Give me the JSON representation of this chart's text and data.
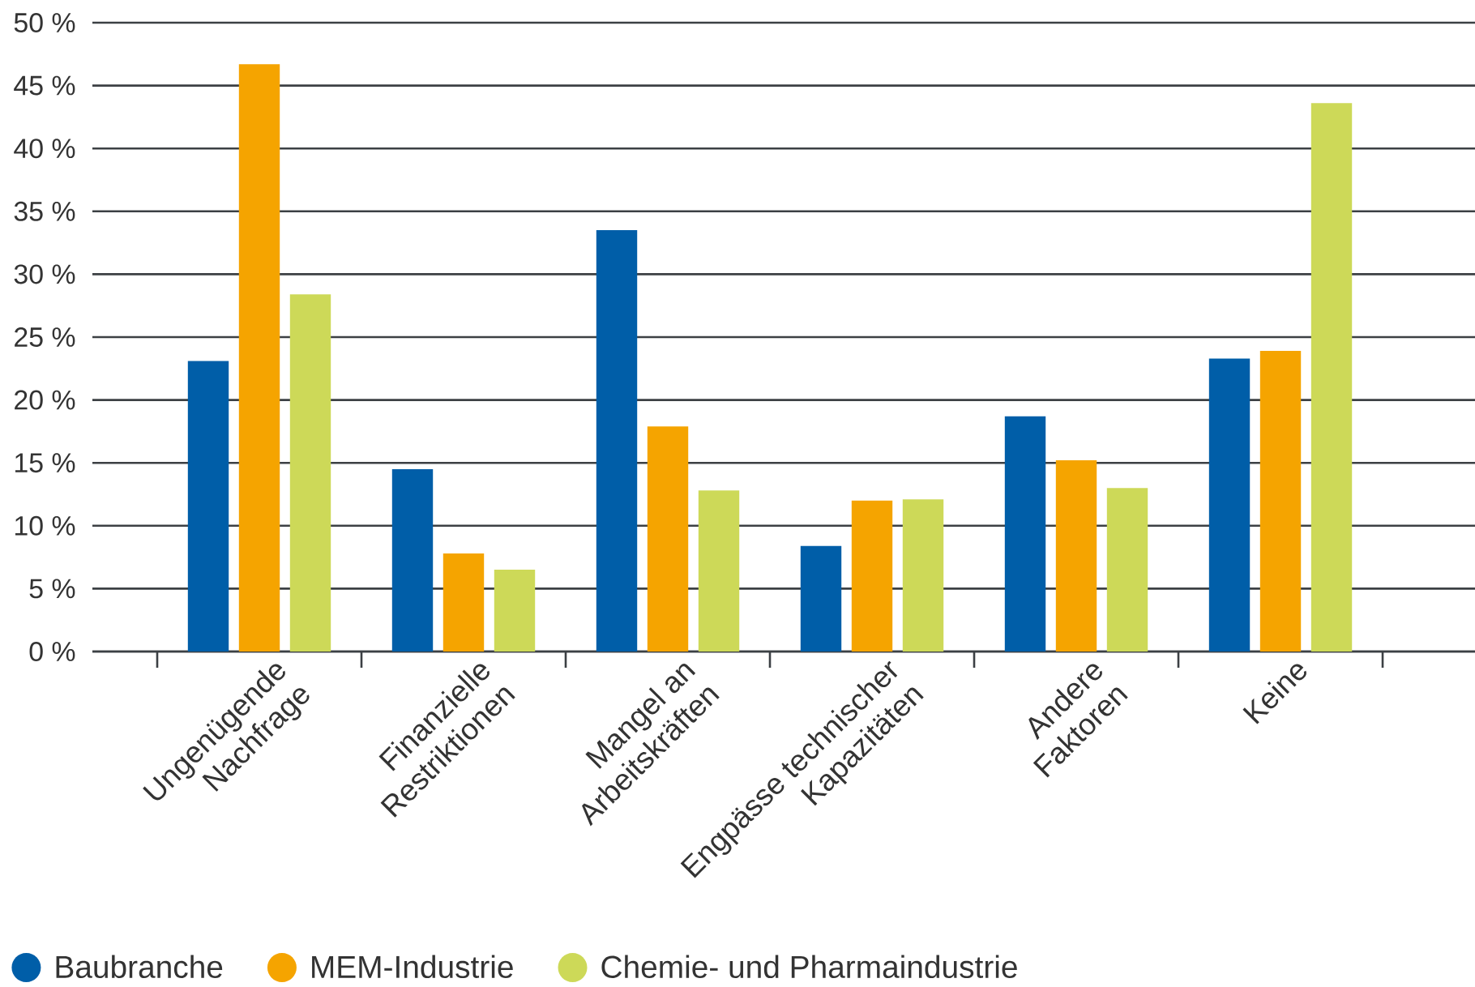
{
  "chart_data": {
    "type": "bar",
    "categories": [
      "Ungenügende Nachfrage",
      "Finanzielle Restriktionen",
      "Mangel an Arbeitskräften",
      "Engpässe technischer Kapazitäten",
      "Andere Faktoren",
      "Keine"
    ],
    "series": [
      {
        "name": "Baubranche",
        "color": "#005ea8",
        "values": [
          23.1,
          14.5,
          33.5,
          8.4,
          18.7,
          23.3
        ]
      },
      {
        "name": "MEM-Industrie",
        "color": "#f5a400",
        "values": [
          46.7,
          7.8,
          17.9,
          12.0,
          15.2,
          23.9
        ]
      },
      {
        "name": "Chemie- und Pharmaindustrie",
        "color": "#cdd958",
        "values": [
          28.4,
          6.5,
          12.8,
          12.1,
          13.0,
          43.6
        ]
      }
    ],
    "ylim": [
      0,
      50
    ],
    "yticks": [
      {
        "value": 0,
        "label": "0 %"
      },
      {
        "value": 5,
        "label": "5 %"
      },
      {
        "value": 10,
        "label": "10 %"
      },
      {
        "value": 15,
        "label": "15 %"
      },
      {
        "value": 20,
        "label": "20 %"
      },
      {
        "value": 25,
        "label": "25 %"
      },
      {
        "value": 30,
        "label": "30 %"
      },
      {
        "value": 35,
        "label": "35 %"
      },
      {
        "value": 40,
        "label": "40 %"
      },
      {
        "value": 45,
        "label": "45 %"
      },
      {
        "value": 50,
        "label": "50 %"
      }
    ],
    "grid": "y",
    "legend": "bottom"
  }
}
